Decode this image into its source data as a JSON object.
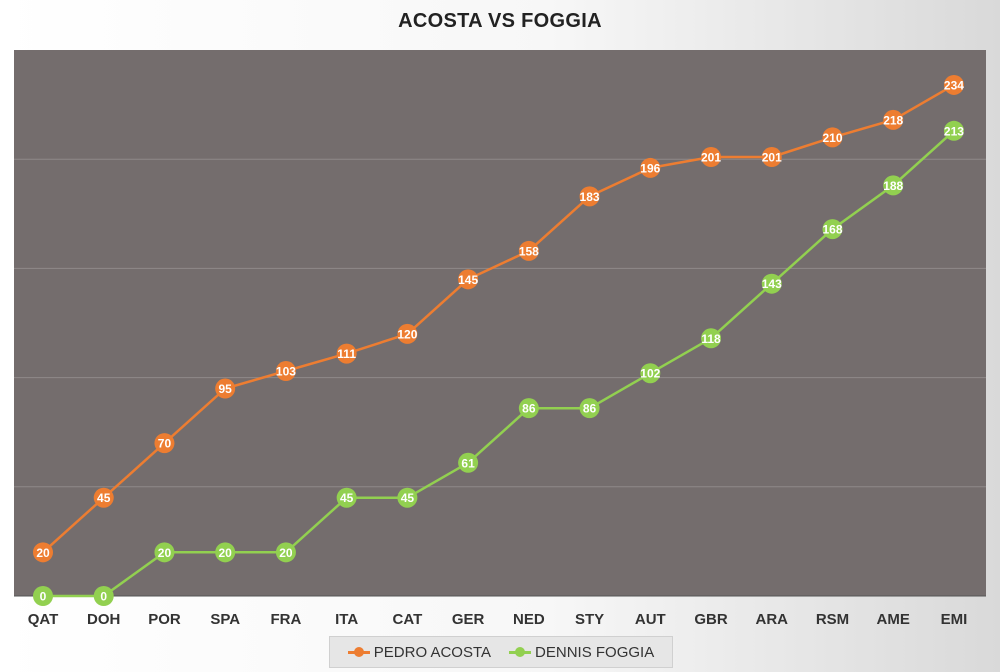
{
  "chart_data": {
    "type": "line",
    "title": "ACOSTA VS FOGGIA",
    "categories": [
      "QAT",
      "DOH",
      "POR",
      "SPA",
      "FRA",
      "ITA",
      "CAT",
      "GER",
      "NED",
      "STY",
      "AUT",
      "GBR",
      "ARA",
      "RSM",
      "AME",
      "EMI"
    ],
    "ylim": [
      0,
      250
    ],
    "grid": true,
    "legend_position": "bottom",
    "series": [
      {
        "name": "PEDRO ACOSTA",
        "color": "#ED7D31",
        "values": [
          20,
          45,
          70,
          95,
          103,
          111,
          120,
          145,
          158,
          183,
          196,
          201,
          201,
          210,
          218,
          234
        ]
      },
      {
        "name": "DENNIS FOGGIA",
        "color": "#92D050",
        "values": [
          0,
          0,
          20,
          20,
          20,
          45,
          45,
          61,
          86,
          86,
          102,
          118,
          143,
          168,
          188,
          213
        ]
      }
    ],
    "plot_background": "#746D6D",
    "gridline_color": "#8f8a8a"
  }
}
